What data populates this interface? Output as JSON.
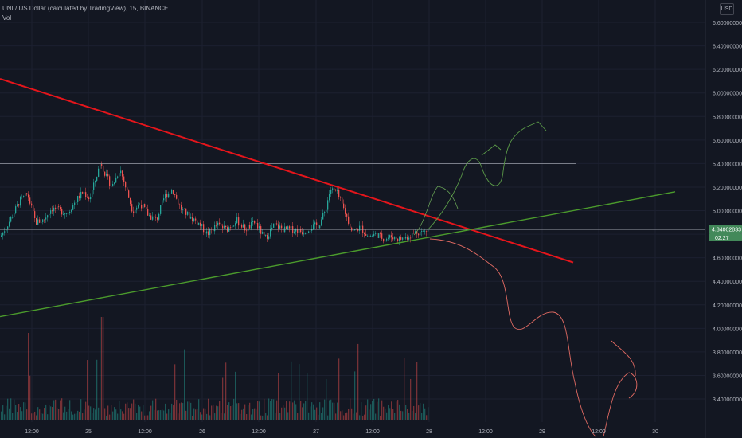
{
  "header": {
    "symbol": "UNI / US Dollar (calculated by TradingView), 15, BINANCE",
    "volume_label": "Vol"
  },
  "currency_label": "USD",
  "price_tag": "4.84002833",
  "countdown_tag": "02:27",
  "colors": {
    "background": "#131722",
    "up": "#26a69a",
    "down": "#ef5350",
    "resistance_line": "#e5151b",
    "support_line": "#4b9b2c",
    "axis_text": "#b2b5be"
  },
  "chart_data": {
    "type": "candlestick",
    "y_axis": {
      "ticks": [
        "3.40000000",
        "3.60000000",
        "3.80000000",
        "4.00000000",
        "4.20000000",
        "4.40000000",
        "4.60000000",
        "4.80000000",
        "5.00000000",
        "5.20000000",
        "5.40000000",
        "5.60000000",
        "5.80000000",
        "6.00000000",
        "6.20000000",
        "6.40000000",
        "6.60000000"
      ],
      "range": [
        3.2,
        6.8
      ],
      "scale": "linear"
    },
    "x_axis": {
      "ticks": [
        "12:00",
        "25",
        "12:00",
        "26",
        "12:00",
        "27",
        "12:00",
        "28",
        "12:00",
        "29",
        "12:00",
        "30"
      ]
    },
    "price_path": {
      "description_only_in_values": true,
      "keypoints": [
        [
          0,
          4.78
        ],
        [
          12,
          4.92
        ],
        [
          24,
          5.08
        ],
        [
          34,
          5.14
        ],
        [
          44,
          4.9
        ],
        [
          54,
          4.92
        ],
        [
          64,
          5.02
        ],
        [
          74,
          5.0
        ],
        [
          84,
          4.98
        ],
        [
          94,
          5.08
        ],
        [
          104,
          5.16
        ],
        [
          112,
          5.1
        ],
        [
          120,
          5.28
        ],
        [
          126,
          5.42
        ],
        [
          132,
          5.3
        ],
        [
          140,
          5.2
        ],
        [
          150,
          5.36
        ],
        [
          158,
          5.18
        ],
        [
          166,
          5.0
        ],
        [
          176,
          5.06
        ],
        [
          186,
          4.96
        ],
        [
          196,
          4.92
        ],
        [
          206,
          5.12
        ],
        [
          216,
          5.18
        ],
        [
          226,
          5.02
        ],
        [
          236,
          4.96
        ],
        [
          248,
          4.9
        ],
        [
          260,
          4.8
        ],
        [
          272,
          4.88
        ],
        [
          284,
          4.84
        ],
        [
          296,
          4.92
        ],
        [
          308,
          4.84
        ],
        [
          320,
          4.9
        ],
        [
          332,
          4.76
        ],
        [
          344,
          4.88
        ],
        [
          356,
          4.84
        ],
        [
          368,
          4.84
        ],
        [
          380,
          4.82
        ],
        [
          390,
          4.86
        ],
        [
          400,
          4.88
        ],
        [
          408,
          5.0
        ],
        [
          414,
          5.18
        ],
        [
          422,
          5.16
        ],
        [
          432,
          5.0
        ],
        [
          442,
          4.82
        ],
        [
          452,
          4.86
        ],
        [
          462,
          4.78
        ],
        [
          472,
          4.8
        ],
        [
          482,
          4.76
        ],
        [
          492,
          4.78
        ],
        [
          502,
          4.76
        ],
        [
          512,
          4.78
        ],
        [
          522,
          4.82
        ],
        [
          532,
          4.82
        ],
        [
          538,
          4.84
        ]
      ]
    },
    "horizontal_levels": [
      5.4,
      5.21,
      4.84
    ],
    "trendlines": [
      {
        "name": "resistance",
        "from": [
          0,
          6.12
        ],
        "to": [
          720,
          4.56
        ],
        "color": "red"
      },
      {
        "name": "support",
        "from": [
          0,
          4.1
        ],
        "to": [
          848,
          5.16
        ],
        "color": "green"
      }
    ]
  }
}
